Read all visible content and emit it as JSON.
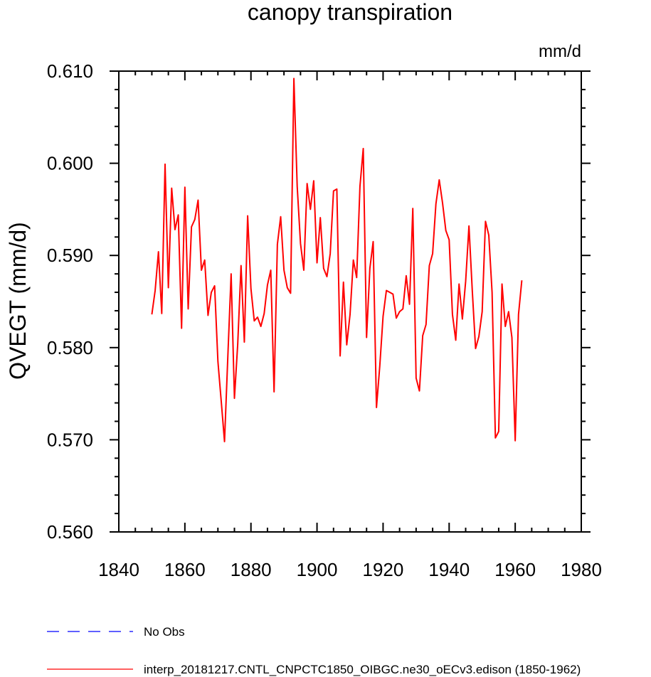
{
  "chart_data": {
    "type": "line",
    "title": "canopy transpiration",
    "ylabel": "QVEGT  (mm/d)",
    "units": "mm/d",
    "xlim": [
      1840,
      1980
    ],
    "ylim": [
      0.56,
      0.61
    ],
    "xticks": [
      1840,
      1860,
      1880,
      1900,
      1920,
      1940,
      1960,
      1980
    ],
    "xtick_labels": [
      "1840",
      "1860",
      "1880",
      "1900",
      "1920",
      "1940",
      "1960",
      "1980"
    ],
    "yticks": [
      0.56,
      0.57,
      0.58,
      0.59,
      0.6,
      0.61
    ],
    "ytick_labels": [
      "0.560",
      "0.570",
      "0.580",
      "0.590",
      "0.600",
      "0.610"
    ],
    "x_minor_step": 5,
    "y_minor_step": 0.002,
    "series": [
      {
        "name": "interp_20181217.CNTL_CNPCTC1850_OIBGC.ne30_oECv3.edison (1850-1962)",
        "color": "#ff0000",
        "dash": "solid",
        "x_start": 1850,
        "values": [
          0.5836,
          0.5862,
          0.5904,
          0.5837,
          0.5999,
          0.5865,
          0.5973,
          0.5928,
          0.5944,
          0.5821,
          0.5974,
          0.5842,
          0.5931,
          0.5939,
          0.596,
          0.5884,
          0.5895,
          0.5835,
          0.586,
          0.5867,
          0.5785,
          0.5742,
          0.5698,
          0.579,
          0.588,
          0.5745,
          0.5804,
          0.5889,
          0.5806,
          0.5943,
          0.5864,
          0.5829,
          0.5833,
          0.5823,
          0.5837,
          0.5868,
          0.5884,
          0.5752,
          0.5912,
          0.5942,
          0.5884,
          0.5865,
          0.5859,
          0.6092,
          0.5975,
          0.5913,
          0.5884,
          0.5978,
          0.595,
          0.5981,
          0.5892,
          0.5941,
          0.5886,
          0.5877,
          0.5902,
          0.597,
          0.5972,
          0.5791,
          0.5871,
          0.5803,
          0.5836,
          0.5895,
          0.5876,
          0.5975,
          0.6016,
          0.5811,
          0.5886,
          0.5915,
          0.5735,
          0.578,
          0.5834,
          0.5862,
          0.586,
          0.5858,
          0.5832,
          0.5839,
          0.5842,
          0.5878,
          0.5847,
          0.5951,
          0.5767,
          0.5753,
          0.5813,
          0.5825,
          0.5889,
          0.5902,
          0.5956,
          0.5982,
          0.5957,
          0.5927,
          0.5917,
          0.5836,
          0.5808,
          0.5869,
          0.5831,
          0.5872,
          0.5932,
          0.5862,
          0.5799,
          0.5812,
          0.5839,
          0.5937,
          0.5922,
          0.586,
          0.5702,
          0.5709,
          0.5869,
          0.5823,
          0.5839,
          0.5811,
          0.5699,
          0.5836,
          0.5873
        ]
      },
      {
        "name": "No Obs",
        "color": "#0000ff",
        "dash": "dashed",
        "values": []
      }
    ],
    "legend": [
      {
        "label": "No Obs",
        "color": "#0000ff",
        "dash": "dashed"
      },
      {
        "label": "interp_20181217.CNTL_CNPCTC1850_OIBGC.ne30_oECv3.edison (1850-1962)",
        "color": "#ff0000",
        "dash": "solid"
      }
    ],
    "legend_position": "bottom-left"
  }
}
